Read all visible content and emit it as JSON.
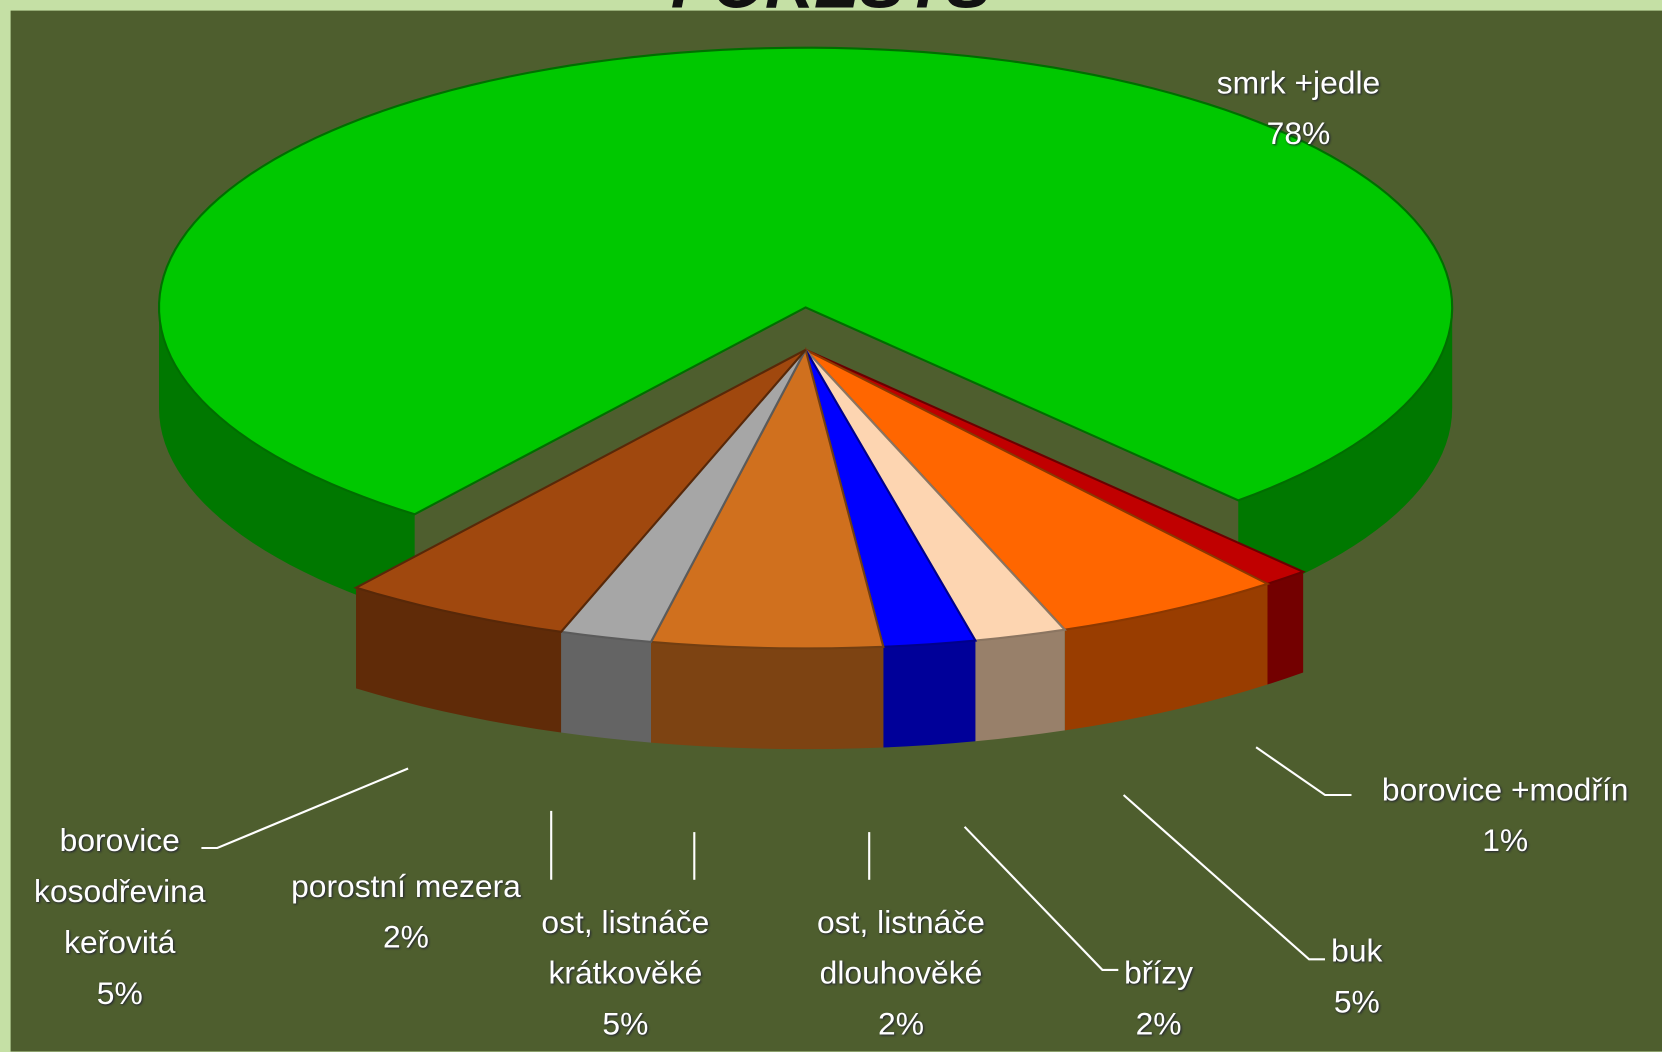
{
  "chart_data": {
    "type": "pie3d",
    "title": "FORESTS",
    "categories": [
      "smrk +jedle",
      "borovice +modřín",
      "buk",
      "břízy",
      "ost, listnáče\ndlouhověké",
      "ost, listnáče\nkrátkověké",
      "porostní mezera",
      "borovice\nkosodřevina\nkeřovitá"
    ],
    "values": [
      78,
      1,
      5,
      2,
      2,
      5,
      2,
      5
    ],
    "value_labels": [
      "78%",
      "1%",
      "5%",
      "2%",
      "2%",
      "5%",
      "2%",
      "5%"
    ],
    "colors": [
      "#00c800",
      "#c00000",
      "#ff6600",
      "#fdd5b1",
      "#0000ff",
      "#d0701e",
      "#a6a6a6",
      "#a0480e"
    ]
  }
}
